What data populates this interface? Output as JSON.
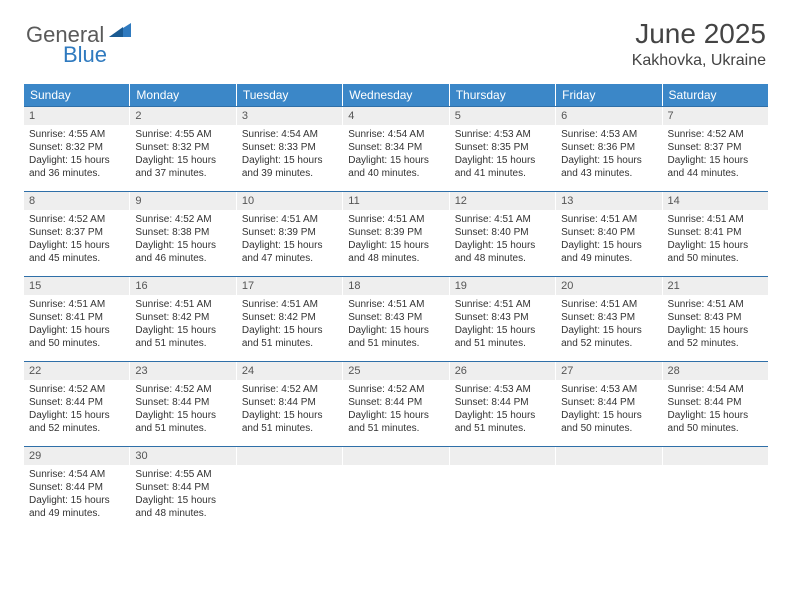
{
  "logo": {
    "text1": "General",
    "text2": "Blue"
  },
  "title": "June 2025",
  "location": "Kakhovka, Ukraine",
  "colors": {
    "header_bg": "#3b87c8",
    "header_text": "#ffffff",
    "row_border": "#2f6fa8",
    "daynum_bg": "#eeeeee",
    "text": "#333333",
    "logo_gray": "#5a5a5a",
    "logo_blue": "#2f7abf"
  },
  "dow": [
    "Sunday",
    "Monday",
    "Tuesday",
    "Wednesday",
    "Thursday",
    "Friday",
    "Saturday"
  ],
  "weeks": [
    [
      {
        "n": "1",
        "sr": "Sunrise: 4:55 AM",
        "ss": "Sunset: 8:32 PM",
        "d1": "Daylight: 15 hours",
        "d2": "and 36 minutes."
      },
      {
        "n": "2",
        "sr": "Sunrise: 4:55 AM",
        "ss": "Sunset: 8:32 PM",
        "d1": "Daylight: 15 hours",
        "d2": "and 37 minutes."
      },
      {
        "n": "3",
        "sr": "Sunrise: 4:54 AM",
        "ss": "Sunset: 8:33 PM",
        "d1": "Daylight: 15 hours",
        "d2": "and 39 minutes."
      },
      {
        "n": "4",
        "sr": "Sunrise: 4:54 AM",
        "ss": "Sunset: 8:34 PM",
        "d1": "Daylight: 15 hours",
        "d2": "and 40 minutes."
      },
      {
        "n": "5",
        "sr": "Sunrise: 4:53 AM",
        "ss": "Sunset: 8:35 PM",
        "d1": "Daylight: 15 hours",
        "d2": "and 41 minutes."
      },
      {
        "n": "6",
        "sr": "Sunrise: 4:53 AM",
        "ss": "Sunset: 8:36 PM",
        "d1": "Daylight: 15 hours",
        "d2": "and 43 minutes."
      },
      {
        "n": "7",
        "sr": "Sunrise: 4:52 AM",
        "ss": "Sunset: 8:37 PM",
        "d1": "Daylight: 15 hours",
        "d2": "and 44 minutes."
      }
    ],
    [
      {
        "n": "8",
        "sr": "Sunrise: 4:52 AM",
        "ss": "Sunset: 8:37 PM",
        "d1": "Daylight: 15 hours",
        "d2": "and 45 minutes."
      },
      {
        "n": "9",
        "sr": "Sunrise: 4:52 AM",
        "ss": "Sunset: 8:38 PM",
        "d1": "Daylight: 15 hours",
        "d2": "and 46 minutes."
      },
      {
        "n": "10",
        "sr": "Sunrise: 4:51 AM",
        "ss": "Sunset: 8:39 PM",
        "d1": "Daylight: 15 hours",
        "d2": "and 47 minutes."
      },
      {
        "n": "11",
        "sr": "Sunrise: 4:51 AM",
        "ss": "Sunset: 8:39 PM",
        "d1": "Daylight: 15 hours",
        "d2": "and 48 minutes."
      },
      {
        "n": "12",
        "sr": "Sunrise: 4:51 AM",
        "ss": "Sunset: 8:40 PM",
        "d1": "Daylight: 15 hours",
        "d2": "and 48 minutes."
      },
      {
        "n": "13",
        "sr": "Sunrise: 4:51 AM",
        "ss": "Sunset: 8:40 PM",
        "d1": "Daylight: 15 hours",
        "d2": "and 49 minutes."
      },
      {
        "n": "14",
        "sr": "Sunrise: 4:51 AM",
        "ss": "Sunset: 8:41 PM",
        "d1": "Daylight: 15 hours",
        "d2": "and 50 minutes."
      }
    ],
    [
      {
        "n": "15",
        "sr": "Sunrise: 4:51 AM",
        "ss": "Sunset: 8:41 PM",
        "d1": "Daylight: 15 hours",
        "d2": "and 50 minutes."
      },
      {
        "n": "16",
        "sr": "Sunrise: 4:51 AM",
        "ss": "Sunset: 8:42 PM",
        "d1": "Daylight: 15 hours",
        "d2": "and 51 minutes."
      },
      {
        "n": "17",
        "sr": "Sunrise: 4:51 AM",
        "ss": "Sunset: 8:42 PM",
        "d1": "Daylight: 15 hours",
        "d2": "and 51 minutes."
      },
      {
        "n": "18",
        "sr": "Sunrise: 4:51 AM",
        "ss": "Sunset: 8:43 PM",
        "d1": "Daylight: 15 hours",
        "d2": "and 51 minutes."
      },
      {
        "n": "19",
        "sr": "Sunrise: 4:51 AM",
        "ss": "Sunset: 8:43 PM",
        "d1": "Daylight: 15 hours",
        "d2": "and 51 minutes."
      },
      {
        "n": "20",
        "sr": "Sunrise: 4:51 AM",
        "ss": "Sunset: 8:43 PM",
        "d1": "Daylight: 15 hours",
        "d2": "and 52 minutes."
      },
      {
        "n": "21",
        "sr": "Sunrise: 4:51 AM",
        "ss": "Sunset: 8:43 PM",
        "d1": "Daylight: 15 hours",
        "d2": "and 52 minutes."
      }
    ],
    [
      {
        "n": "22",
        "sr": "Sunrise: 4:52 AM",
        "ss": "Sunset: 8:44 PM",
        "d1": "Daylight: 15 hours",
        "d2": "and 52 minutes."
      },
      {
        "n": "23",
        "sr": "Sunrise: 4:52 AM",
        "ss": "Sunset: 8:44 PM",
        "d1": "Daylight: 15 hours",
        "d2": "and 51 minutes."
      },
      {
        "n": "24",
        "sr": "Sunrise: 4:52 AM",
        "ss": "Sunset: 8:44 PM",
        "d1": "Daylight: 15 hours",
        "d2": "and 51 minutes."
      },
      {
        "n": "25",
        "sr": "Sunrise: 4:52 AM",
        "ss": "Sunset: 8:44 PM",
        "d1": "Daylight: 15 hours",
        "d2": "and 51 minutes."
      },
      {
        "n": "26",
        "sr": "Sunrise: 4:53 AM",
        "ss": "Sunset: 8:44 PM",
        "d1": "Daylight: 15 hours",
        "d2": "and 51 minutes."
      },
      {
        "n": "27",
        "sr": "Sunrise: 4:53 AM",
        "ss": "Sunset: 8:44 PM",
        "d1": "Daylight: 15 hours",
        "d2": "and 50 minutes."
      },
      {
        "n": "28",
        "sr": "Sunrise: 4:54 AM",
        "ss": "Sunset: 8:44 PM",
        "d1": "Daylight: 15 hours",
        "d2": "and 50 minutes."
      }
    ],
    [
      {
        "n": "29",
        "sr": "Sunrise: 4:54 AM",
        "ss": "Sunset: 8:44 PM",
        "d1": "Daylight: 15 hours",
        "d2": "and 49 minutes."
      },
      {
        "n": "30",
        "sr": "Sunrise: 4:55 AM",
        "ss": "Sunset: 8:44 PM",
        "d1": "Daylight: 15 hours",
        "d2": "and 48 minutes."
      },
      {
        "empty": true
      },
      {
        "empty": true
      },
      {
        "empty": true
      },
      {
        "empty": true
      },
      {
        "empty": true
      }
    ]
  ]
}
